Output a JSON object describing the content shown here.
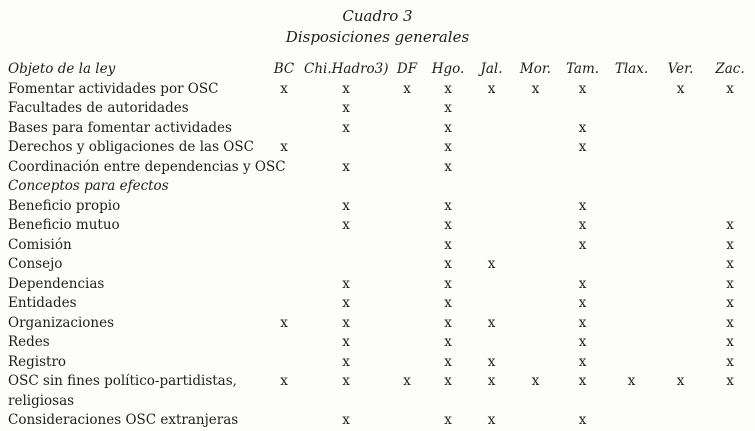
{
  "page": {
    "title": "Cuadro 3",
    "subtitle": "Disposiciones generales"
  },
  "table": {
    "label_header": "Objeto de la ley",
    "columns": [
      "BC",
      "Chi.Hadro3)",
      "DF",
      "Hgo.",
      "Jal.",
      "Mor.",
      "Tam.",
      "Tlax.",
      "Ver.",
      "Zac."
    ],
    "mark_glyph": "x",
    "rows": [
      {
        "label": "Fomentar actividades por OSC",
        "style": "normal",
        "marks": [
          "x",
          "x",
          "x",
          "x",
          "x",
          "x",
          "x",
          "",
          "x",
          "x"
        ]
      },
      {
        "label": "Facultades de autoridades",
        "style": "normal",
        "marks": [
          "",
          "x",
          "",
          "x",
          "",
          "",
          "",
          "",
          "",
          ""
        ]
      },
      {
        "label": "Bases para fomentar actividades",
        "style": "normal",
        "marks": [
          "",
          "x",
          "",
          "x",
          "",
          "",
          "x",
          "",
          "",
          ""
        ]
      },
      {
        "label": "Derechos y obligaciones de las OSC",
        "style": "normal",
        "marks": [
          "x",
          "",
          "",
          "x",
          "",
          "",
          "x",
          "",
          "",
          ""
        ]
      },
      {
        "label": "Coordinación entre dependencias y OSC",
        "style": "normal",
        "marks": [
          "",
          "x",
          "",
          "x",
          "",
          "",
          "",
          "",
          "",
          ""
        ]
      },
      {
        "label": "Conceptos para efectos",
        "style": "italic",
        "marks": [
          "",
          "",
          "",
          "",
          "",
          "",
          "",
          "",
          "",
          ""
        ]
      },
      {
        "label": "Beneficio propio",
        "style": "normal",
        "marks": [
          "",
          "x",
          "",
          "x",
          "",
          "",
          "x",
          "",
          "",
          ""
        ]
      },
      {
        "label": "Beneficio mutuo",
        "style": "normal",
        "marks": [
          "",
          "x",
          "",
          "x",
          "",
          "",
          "x",
          "",
          "",
          "x"
        ]
      },
      {
        "label": "Comisión",
        "style": "normal",
        "marks": [
          "",
          "",
          "",
          "x",
          "",
          "",
          "x",
          "",
          "",
          "x"
        ]
      },
      {
        "label": "Consejo",
        "style": "normal",
        "marks": [
          "",
          "",
          "",
          "x",
          "x",
          "",
          "",
          "",
          "",
          "x"
        ]
      },
      {
        "label": "Dependencias",
        "style": "normal",
        "marks": [
          "",
          "x",
          "",
          "x",
          "",
          "",
          "x",
          "",
          "",
          "x"
        ]
      },
      {
        "label": "Entidades",
        "style": "normal",
        "marks": [
          "",
          "x",
          "",
          "x",
          "",
          "",
          "x",
          "",
          "",
          "x"
        ]
      },
      {
        "label": "Organizaciones",
        "style": "normal",
        "marks": [
          "x",
          "x",
          "",
          "x",
          "x",
          "",
          "x",
          "",
          "",
          "x"
        ]
      },
      {
        "label": "Redes",
        "style": "normal",
        "marks": [
          "",
          "x",
          "",
          "x",
          "",
          "",
          "x",
          "",
          "",
          "x"
        ]
      },
      {
        "label": "Registro",
        "style": "normal",
        "marks": [
          "",
          "x",
          "",
          "x",
          "x",
          "",
          "x",
          "",
          "",
          "x"
        ]
      },
      {
        "label": "OSC sin fines político-partidistas,\nreligiosas",
        "style": "normal",
        "marks": [
          "x",
          "x",
          "x",
          "x",
          "x",
          "x",
          "x",
          "x",
          "x",
          "x"
        ]
      },
      {
        "label": "Consideraciones OSC extranjeras",
        "style": "normal",
        "marks": [
          "",
          "x",
          "",
          "x",
          "x",
          "",
          "x",
          "",
          "",
          ""
        ]
      }
    ]
  }
}
